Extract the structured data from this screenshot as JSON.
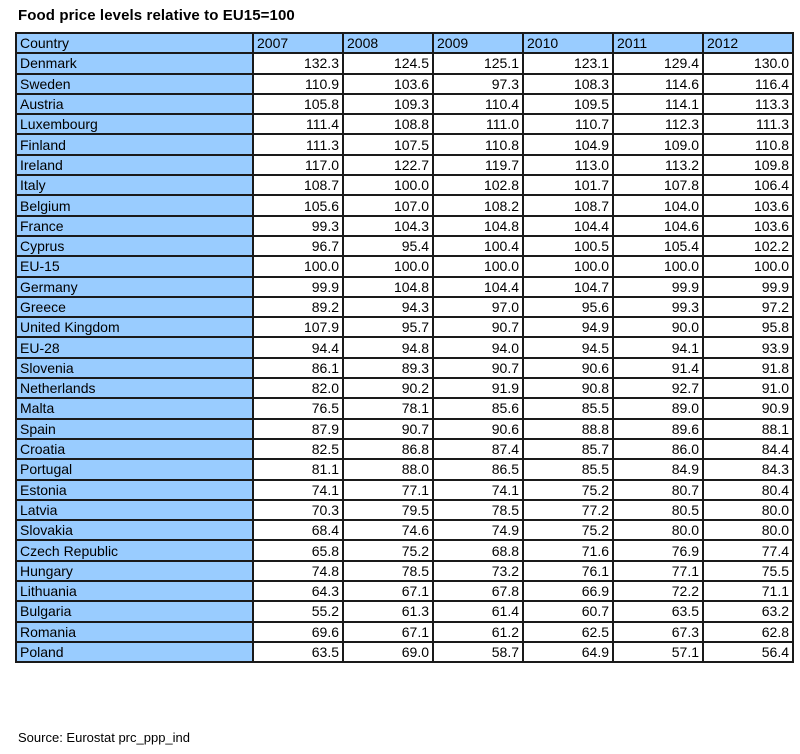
{
  "title": "Food price levels relative to EU15=100",
  "table": {
    "headers": [
      "Country",
      "2007",
      "2008",
      "2009",
      "2010",
      "2011",
      "2012"
    ],
    "rows": [
      [
        "Denmark",
        "132.3",
        "124.5",
        "125.1",
        "123.1",
        "129.4",
        "130.0"
      ],
      [
        "Sweden",
        "110.9",
        "103.6",
        "97.3",
        "108.3",
        "114.6",
        "116.4"
      ],
      [
        "Austria",
        "105.8",
        "109.3",
        "110.4",
        "109.5",
        "114.1",
        "113.3"
      ],
      [
        "Luxembourg",
        "111.4",
        "108.8",
        "111.0",
        "110.7",
        "112.3",
        "111.3"
      ],
      [
        "Finland",
        "111.3",
        "107.5",
        "110.8",
        "104.9",
        "109.0",
        "110.8"
      ],
      [
        "Ireland",
        "117.0",
        "122.7",
        "119.7",
        "113.0",
        "113.2",
        "109.8"
      ],
      [
        "Italy",
        "108.7",
        "100.0",
        "102.8",
        "101.7",
        "107.8",
        "106.4"
      ],
      [
        "Belgium",
        "105.6",
        "107.0",
        "108.2",
        "108.7",
        "104.0",
        "103.6"
      ],
      [
        "France",
        "99.3",
        "104.3",
        "104.8",
        "104.4",
        "104.6",
        "103.6"
      ],
      [
        "Cyprus",
        "96.7",
        "95.4",
        "100.4",
        "100.5",
        "105.4",
        "102.2"
      ],
      [
        "EU-15",
        "100.0",
        "100.0",
        "100.0",
        "100.0",
        "100.0",
        "100.0"
      ],
      [
        "Germany",
        "99.9",
        "104.8",
        "104.4",
        "104.7",
        "99.9",
        "99.9"
      ],
      [
        "Greece",
        "89.2",
        "94.3",
        "97.0",
        "95.6",
        "99.3",
        "97.2"
      ],
      [
        "United Kingdom",
        "107.9",
        "95.7",
        "90.7",
        "94.9",
        "90.0",
        "95.8"
      ],
      [
        "EU-28",
        "94.4",
        "94.8",
        "94.0",
        "94.5",
        "94.1",
        "93.9"
      ],
      [
        "Slovenia",
        "86.1",
        "89.3",
        "90.7",
        "90.6",
        "91.4",
        "91.8"
      ],
      [
        "Netherlands",
        "82.0",
        "90.2",
        "91.9",
        "90.8",
        "92.7",
        "91.0"
      ],
      [
        "Malta",
        "76.5",
        "78.1",
        "85.6",
        "85.5",
        "89.0",
        "90.9"
      ],
      [
        "Spain",
        "87.9",
        "90.7",
        "90.6",
        "88.8",
        "89.6",
        "88.1"
      ],
      [
        "Croatia",
        "82.5",
        "86.8",
        "87.4",
        "85.7",
        "86.0",
        "84.4"
      ],
      [
        "Portugal",
        "81.1",
        "88.0",
        "86.5",
        "85.5",
        "84.9",
        "84.3"
      ],
      [
        "Estonia",
        "74.1",
        "77.1",
        "74.1",
        "75.2",
        "80.7",
        "80.4"
      ],
      [
        "Latvia",
        "70.3",
        "79.5",
        "78.5",
        "77.2",
        "80.5",
        "80.0"
      ],
      [
        "Slovakia",
        "68.4",
        "74.6",
        "74.9",
        "75.2",
        "80.0",
        "80.0"
      ],
      [
        "Czech Republic",
        "65.8",
        "75.2",
        "68.8",
        "71.6",
        "76.9",
        "77.4"
      ],
      [
        "Hungary",
        "74.8",
        "78.5",
        "73.2",
        "76.1",
        "77.1",
        "75.5"
      ],
      [
        "Lithuania",
        "64.3",
        "67.1",
        "67.8",
        "66.9",
        "72.2",
        "71.1"
      ],
      [
        "Bulgaria",
        "55.2",
        "61.3",
        "61.4",
        "60.7",
        "63.5",
        "63.2"
      ],
      [
        "Romania",
        "69.6",
        "67.1",
        "61.2",
        "62.5",
        "67.3",
        "62.8"
      ],
      [
        "Poland",
        "63.5",
        "69.0",
        "58.7",
        "64.9",
        "57.1",
        "56.4"
      ]
    ]
  },
  "source": "Source: Eurostat prc_ppp_ind",
  "colors": {
    "header_fill": "#99ccff",
    "country_fill": "#99ccff",
    "cell_fill": "#ffffff",
    "border": "#1a1a1a"
  }
}
